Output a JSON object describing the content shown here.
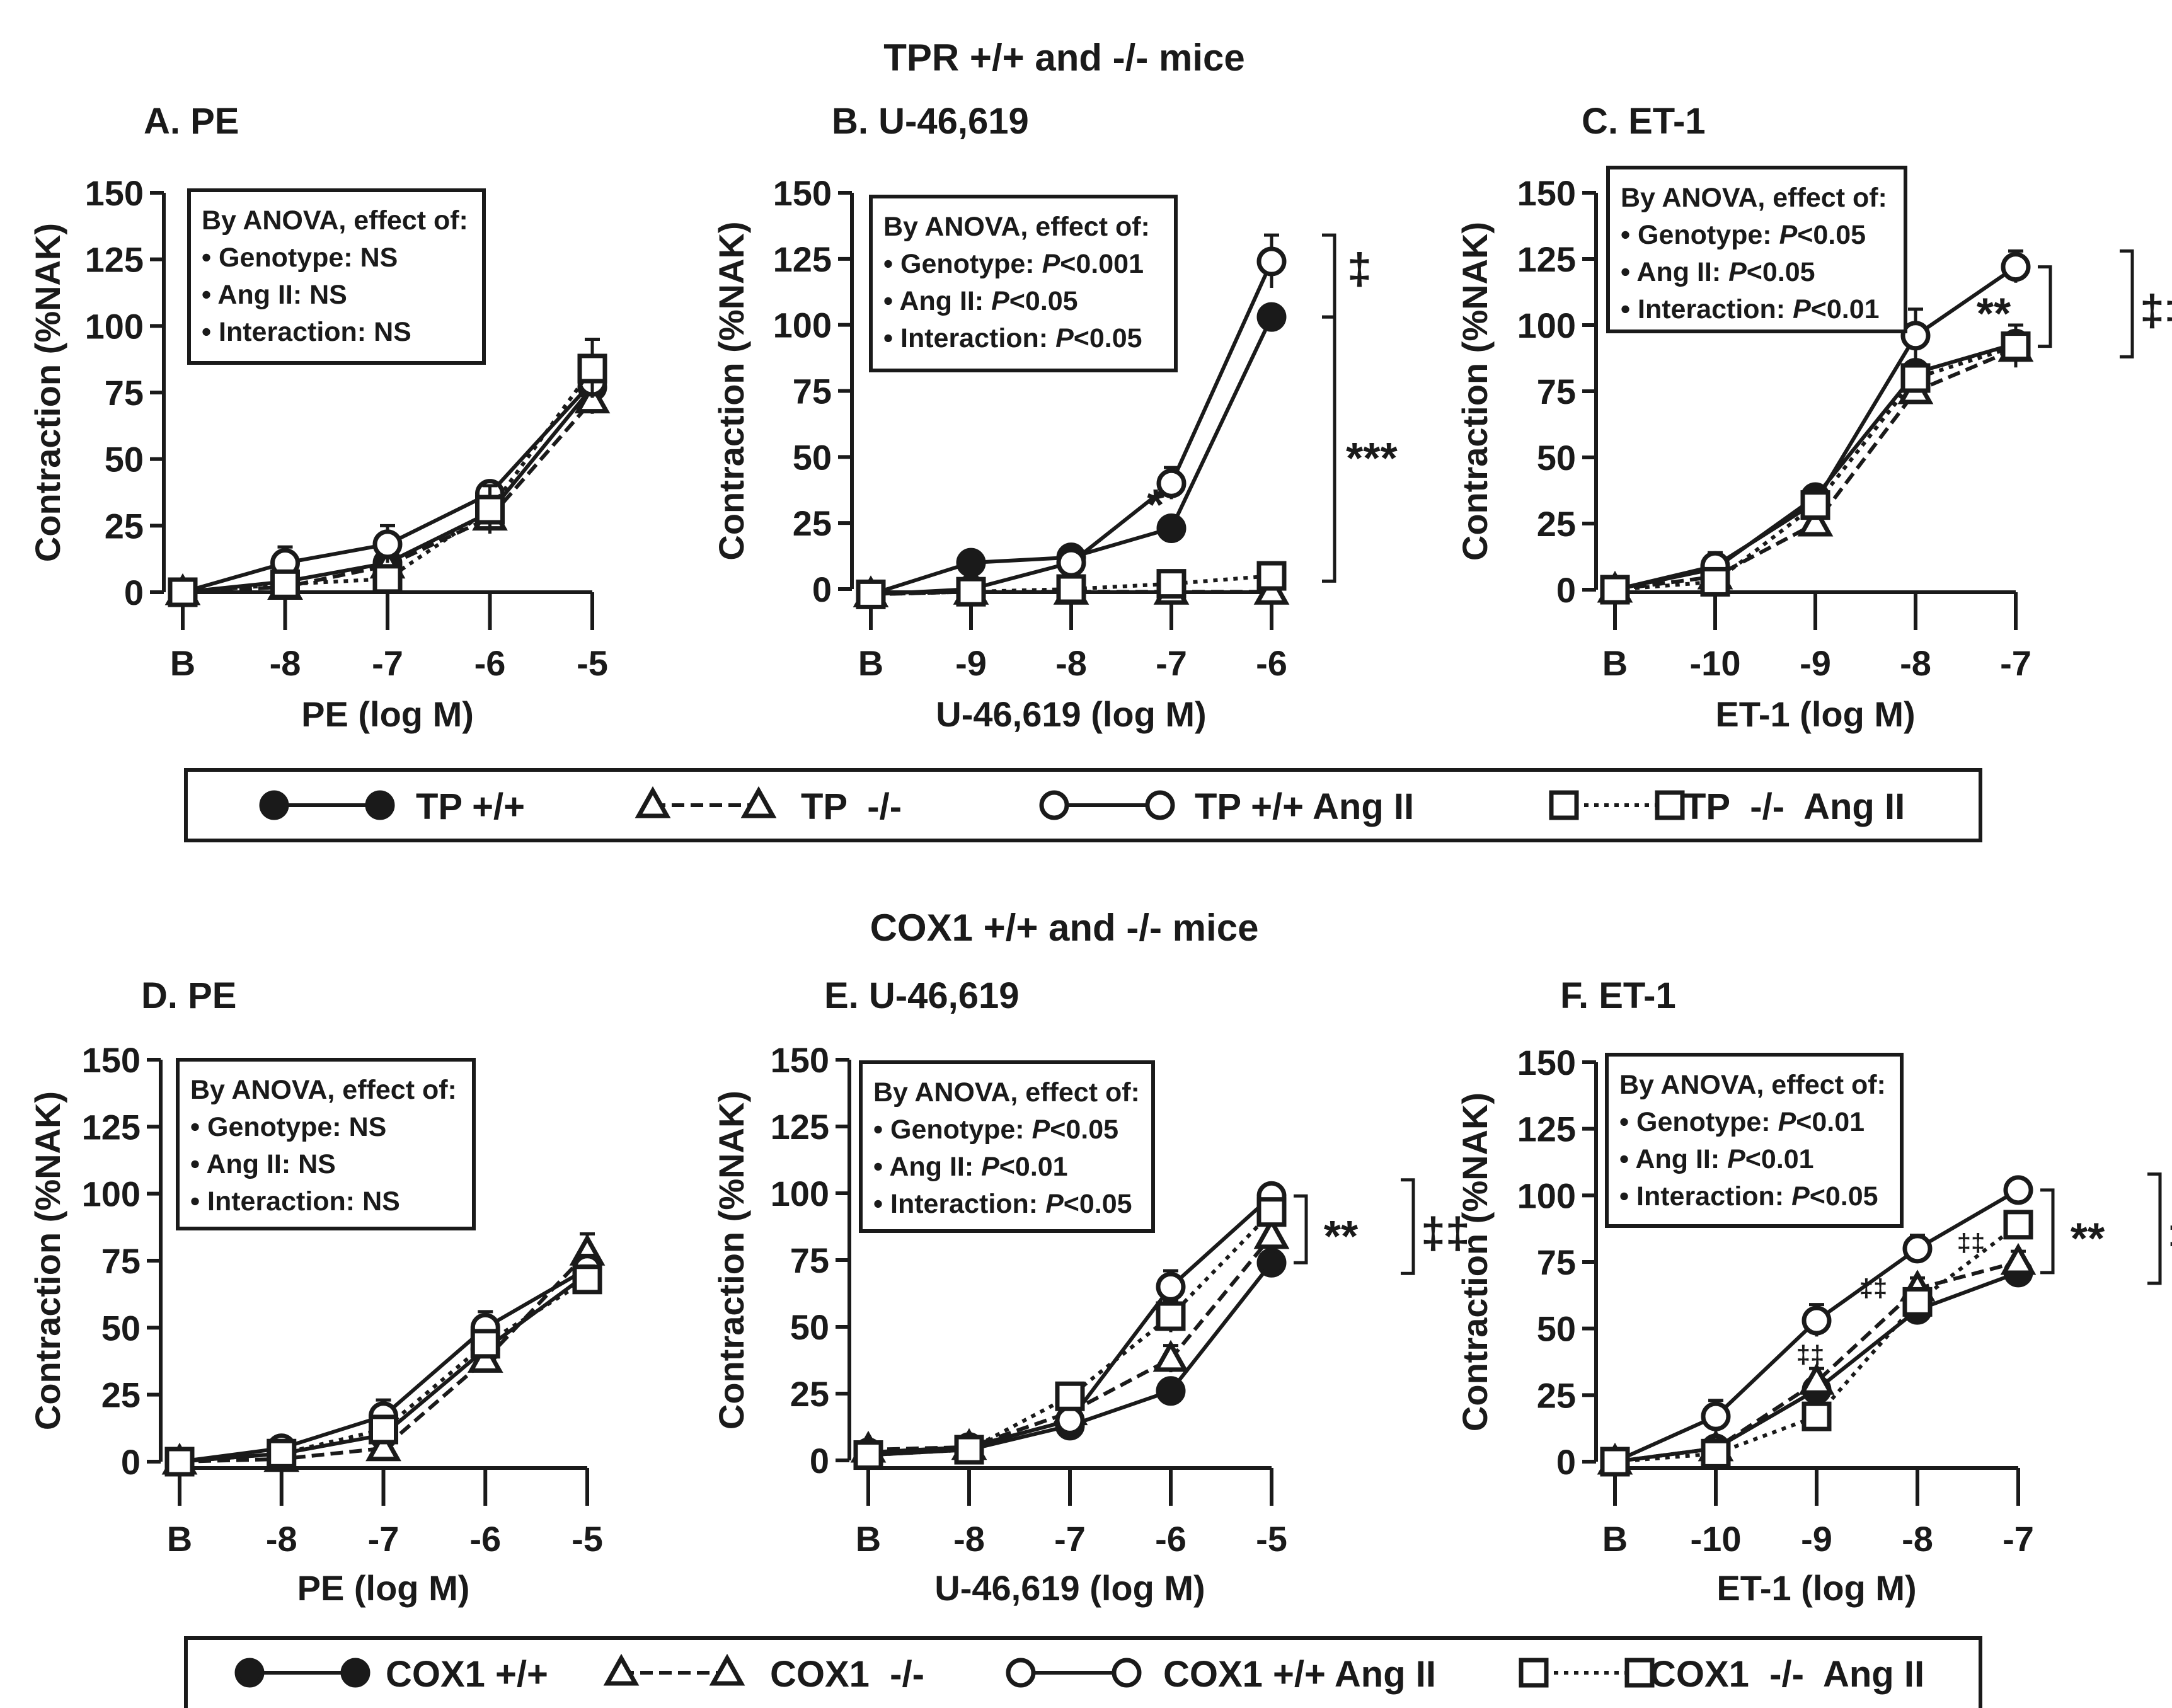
{
  "colors": {
    "ink": "#1a1a1a",
    "background": "#ffffff"
  },
  "sections": [
    {
      "id": "tpr",
      "title": "TPR +/+ and -/- mice"
    },
    {
      "id": "cox1",
      "title": "COX1 +/+ and -/- mice"
    }
  ],
  "legends": [
    {
      "section": "tpr",
      "entries": [
        {
          "label": "TP +/+",
          "marker": "filled-circle",
          "line": "solid"
        },
        {
          "label": "TP  -/-",
          "marker": "open-triangle",
          "line": "dashed"
        },
        {
          "label": "TP +/+ Ang II",
          "marker": "open-circle",
          "line": "solid"
        },
        {
          "label": "TP  -/-  Ang II",
          "marker": "open-square",
          "line": "dotted"
        }
      ]
    },
    {
      "section": "cox1",
      "entries": [
        {
          "label": "COX1 +/+",
          "marker": "filled-circle",
          "line": "solid"
        },
        {
          "label": "COX1  -/-",
          "marker": "open-triangle",
          "line": "dashed"
        },
        {
          "label": "COX1 +/+ Ang II",
          "marker": "open-circle",
          "line": "solid"
        },
        {
          "label": "COX1  -/-  Ang II",
          "marker": "open-square",
          "line": "dotted"
        }
      ]
    }
  ],
  "chart_data": [
    {
      "type": "line",
      "section": "tpr",
      "letter": "A.",
      "agonist": "PE",
      "title": "A.  PE",
      "xlabel": "PE (log M)",
      "ylabel": "Contraction (%NAK)",
      "categories": [
        "B",
        "-8",
        "-7",
        "-6",
        "-5"
      ],
      "ylim": [
        0,
        150
      ],
      "yticks": [
        0,
        25,
        50,
        75,
        100,
        125,
        150
      ],
      "stats": [
        "By ANOVA, effect of:",
        "• Genotype: NS",
        "• Ang II: NS",
        "• Interaction: NS"
      ],
      "series": [
        {
          "name": "TP +/+",
          "values": [
            0,
            4,
            11,
            30,
            77
          ],
          "errors": [
            2,
            3,
            3,
            4,
            5
          ]
        },
        {
          "name": "TP  -/-",
          "values": [
            0,
            2,
            10,
            28,
            72
          ],
          "errors": [
            2,
            2,
            3,
            4,
            5
          ]
        },
        {
          "name": "TP +/+ Ang II",
          "values": [
            0,
            11,
            18,
            37,
            79
          ],
          "errors": [
            2,
            6,
            7,
            4,
            5
          ]
        },
        {
          "name": "TP  -/-  Ang II",
          "values": [
            0,
            3,
            5,
            31,
            84
          ],
          "errors": [
            2,
            2,
            2,
            9,
            11
          ]
        }
      ],
      "annotations": []
    },
    {
      "type": "line",
      "section": "tpr",
      "letter": "B.",
      "agonist": "U-46,619",
      "title": "B.  U-46,619",
      "xlabel": "U-46,619 (log M)",
      "ylabel": "Contraction (%NAK)",
      "categories": [
        "B",
        "-9",
        "-8",
        "-7",
        "-6"
      ],
      "ylim": [
        0,
        150
      ],
      "yticks": [
        0,
        25,
        50,
        75,
        100,
        125,
        150
      ],
      "stats": [
        "By ANOVA, effect of:",
        "• Genotype: P<0.001",
        "• Ang II: P<0.05",
        "• Interaction: P<0.05"
      ],
      "series": [
        {
          "name": "TP +/+",
          "values": [
            -2,
            10,
            12,
            23,
            103
          ],
          "errors": [
            2,
            2,
            2,
            3,
            4
          ]
        },
        {
          "name": "TP  -/-",
          "values": [
            -2,
            -1,
            -1,
            -1,
            -1
          ],
          "errors": [
            1,
            1,
            1,
            1,
            1
          ]
        },
        {
          "name": "TP +/+ Ang II",
          "values": [
            -2,
            0,
            10,
            40,
            124
          ],
          "errors": [
            2,
            2,
            3,
            6,
            10
          ]
        },
        {
          "name": "TP  -/-  Ang II",
          "values": [
            -2,
            -1,
            0,
            2,
            5
          ],
          "errors": [
            1,
            1,
            1,
            2,
            2
          ]
        }
      ],
      "annotations": [
        {
          "text": "‡",
          "kind": "bracket",
          "span": [
            103,
            124
          ]
        },
        {
          "text": "***",
          "kind": "bracket",
          "span": [
            3,
            103
          ]
        },
        {
          "text": "*",
          "kind": "point",
          "category": "-7"
        }
      ]
    },
    {
      "type": "line",
      "section": "tpr",
      "letter": "C.",
      "agonist": "ET-1",
      "title": "C.  ET-1",
      "xlabel": "ET-1 (log M)",
      "ylabel": "Contraction (%NAK)",
      "categories": [
        "B",
        "-10",
        "-9",
        "-8",
        "-7"
      ],
      "ylim": [
        0,
        150
      ],
      "yticks": [
        0,
        25,
        50,
        75,
        100,
        125,
        150
      ],
      "stats": [
        "By ANOVA, effect of:",
        "• Genotype: P<0.05",
        "• Ang II: P<0.05",
        "• Interaction: P<0.01"
      ],
      "series": [
        {
          "name": "TP +/+",
          "values": [
            0,
            8,
            35,
            82,
            93
          ],
          "errors": [
            2,
            3,
            4,
            4,
            4
          ]
        },
        {
          "name": "TP  -/-",
          "values": [
            0,
            5,
            25,
            75,
            91
          ],
          "errors": [
            2,
            3,
            3,
            4,
            4
          ]
        },
        {
          "name": "TP +/+ Ang II",
          "values": [
            0,
            9,
            33,
            96,
            122
          ],
          "errors": [
            2,
            5,
            6,
            10,
            6
          ]
        },
        {
          "name": "TP  -/-  Ang II",
          "values": [
            0,
            3,
            32,
            80,
            92
          ],
          "errors": [
            2,
            3,
            5,
            5,
            8
          ]
        }
      ],
      "annotations": [
        {
          "text": "**",
          "kind": "bracket",
          "span": [
            92,
            122
          ]
        },
        {
          "text": "‡‡",
          "kind": "bracket",
          "span": [
            92,
            122
          ]
        }
      ]
    },
    {
      "type": "line",
      "section": "cox1",
      "letter": "D.",
      "agonist": "PE",
      "title": "D.  PE",
      "xlabel": "PE (log M)",
      "ylabel": "Contraction (%NAK)",
      "categories": [
        "B",
        "-8",
        "-7",
        "-6",
        "-5"
      ],
      "ylim": [
        0,
        150
      ],
      "yticks": [
        0,
        25,
        50,
        75,
        100,
        125,
        150
      ],
      "stats": [
        "By ANOVA, effect of:",
        "• Genotype: NS",
        "• Ang II: NS",
        "• Interaction: NS"
      ],
      "series": [
        {
          "name": "COX1 +/+",
          "values": [
            0,
            3,
            10,
            42,
            70
          ],
          "errors": [
            2,
            2,
            3,
            4,
            5
          ]
        },
        {
          "name": "COX1  -/-",
          "values": [
            0,
            1,
            5,
            38,
            78
          ],
          "errors": [
            2,
            2,
            2,
            4,
            7
          ]
        },
        {
          "name": "COX1 +/+ Ang II",
          "values": [
            0,
            5,
            17,
            50,
            72
          ],
          "errors": [
            2,
            3,
            6,
            6,
            5
          ]
        },
        {
          "name": "COX1  -/-  Ang II",
          "values": [
            0,
            3,
            12,
            44,
            68
          ],
          "errors": [
            2,
            2,
            4,
            4,
            5
          ]
        }
      ],
      "annotations": []
    },
    {
      "type": "line",
      "section": "cox1",
      "letter": "E.",
      "agonist": "U-46,619",
      "title": "E.  U-46,619",
      "xlabel": "U-46,619 (log M)",
      "ylabel": "Contraction (%NAK)",
      "categories": [
        "B",
        "-8",
        "-7",
        "-6",
        "-5"
      ],
      "ylim": [
        0,
        150
      ],
      "yticks": [
        0,
        25,
        50,
        75,
        100,
        125,
        150
      ],
      "stats": [
        "By ANOVA, effect of:",
        "• Genotype: P<0.05",
        "• Ang II: P<0.01",
        "• Interaction: P<0.05"
      ],
      "series": [
        {
          "name": "COX1 +/+",
          "values": [
            2,
            4,
            13,
            26,
            74
          ],
          "errors": [
            2,
            2,
            2,
            3,
            3
          ]
        },
        {
          "name": "COX1  -/-",
          "values": [
            4,
            5,
            18,
            38,
            84
          ],
          "errors": [
            2,
            2,
            3,
            5,
            5
          ]
        },
        {
          "name": "COX1 +/+ Ang II",
          "values": [
            3,
            5,
            15,
            65,
            99
          ],
          "errors": [
            2,
            2,
            3,
            6,
            3
          ]
        },
        {
          "name": "COX1  -/-  Ang II",
          "values": [
            2,
            4,
            24,
            54,
            93
          ],
          "errors": [
            2,
            2,
            3,
            6,
            4
          ]
        }
      ],
      "annotations": [
        {
          "text": "**",
          "kind": "bracket",
          "span": [
            74,
            99
          ]
        },
        {
          "text": "‡‡",
          "kind": "bracket",
          "span": [
            74,
            99
          ]
        }
      ]
    },
    {
      "type": "line",
      "section": "cox1",
      "letter": "F.",
      "agonist": "ET-1",
      "title": "F.  ET-1",
      "xlabel": "ET-1 (log M)",
      "ylabel": "Contraction (%NAK)",
      "categories": [
        "B",
        "-10",
        "-9",
        "-8",
        "-7"
      ],
      "ylim": [
        0,
        150
      ],
      "yticks": [
        0,
        25,
        50,
        75,
        100,
        125,
        150
      ],
      "stats": [
        "By ANOVA, effect of:",
        "• Genotype: P<0.01",
        "• Ang II: P<0.01",
        "• Interaction: P<0.05"
      ],
      "series": [
        {
          "name": "COX1 +/+",
          "values": [
            0,
            5,
            27,
            57,
            71
          ],
          "errors": [
            2,
            3,
            4,
            3,
            3
          ]
        },
        {
          "name": "COX1  -/-",
          "values": [
            0,
            5,
            30,
            65,
            75
          ],
          "errors": [
            2,
            3,
            5,
            4,
            4
          ]
        },
        {
          "name": "COX1 +/+ Ang II",
          "values": [
            0,
            17,
            53,
            80,
            102
          ],
          "errors": [
            2,
            6,
            6,
            5,
            3
          ]
        },
        {
          "name": "COX1  -/-  Ang II",
          "values": [
            0,
            3,
            17,
            60,
            89
          ],
          "errors": [
            2,
            2,
            3,
            4,
            4
          ]
        }
      ],
      "annotations": [
        {
          "text": "‡‡",
          "kind": "point",
          "category": "-9"
        },
        {
          "text": "‡‡",
          "kind": "point",
          "category": "-8"
        },
        {
          "text": "‡‡",
          "kind": "point",
          "category": "-8"
        },
        {
          "text": "**",
          "kind": "bracket",
          "span": [
            71,
            102
          ]
        },
        {
          "text": "‡‡",
          "kind": "bracket",
          "span": [
            71,
            102
          ]
        }
      ]
    }
  ]
}
